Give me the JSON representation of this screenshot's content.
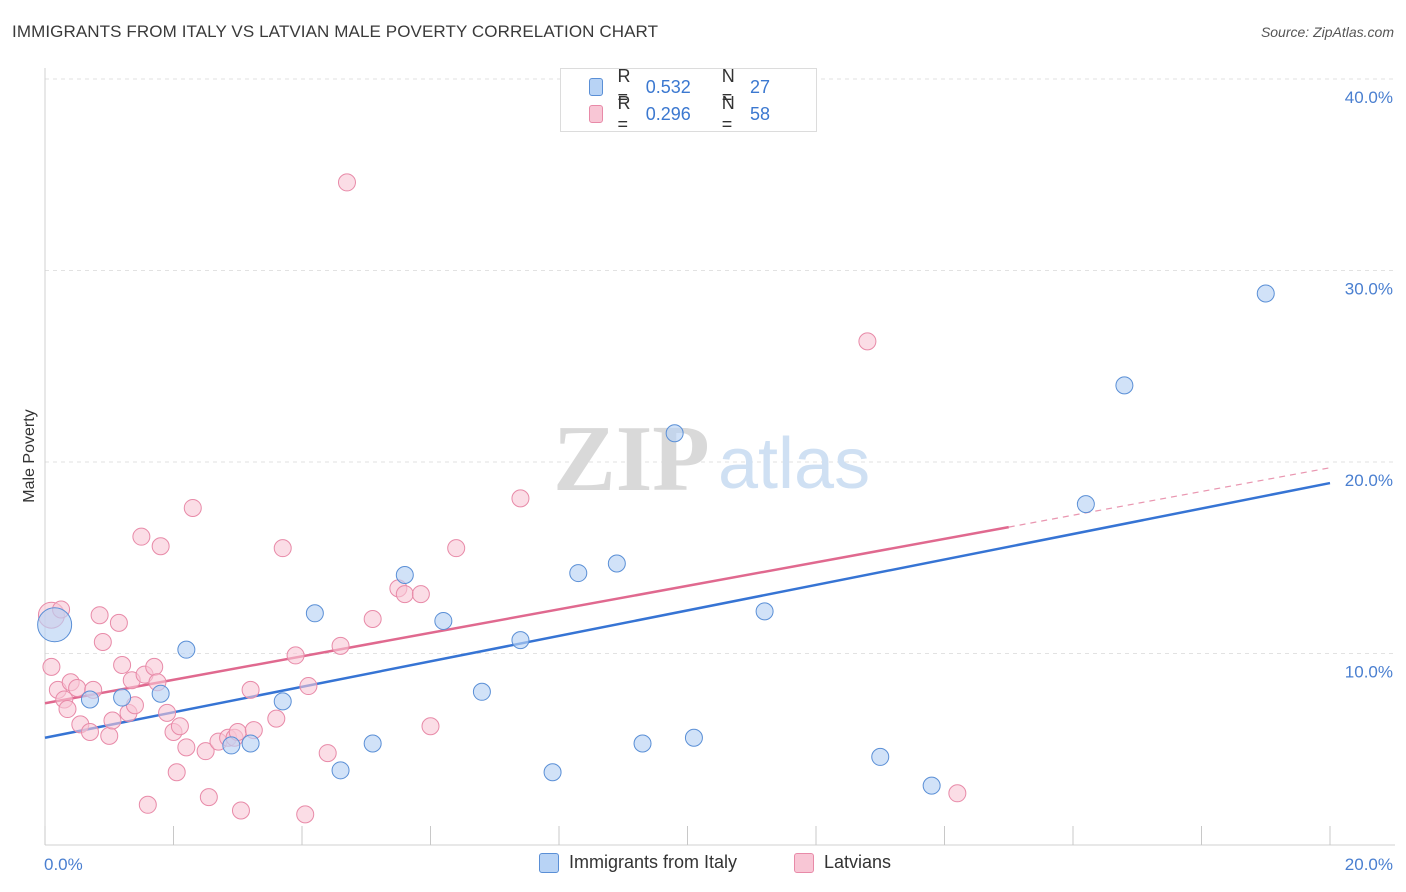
{
  "header": {
    "title": "IMMIGRANTS FROM ITALY VS LATVIAN MALE POVERTY CORRELATION CHART",
    "source": "Source: ZipAtlas.com"
  },
  "watermark": {
    "zip": "ZIP",
    "atlas": "atlas"
  },
  "legend": {
    "rows": [
      {
        "r_label": "R =",
        "r_value": "0.532",
        "n_label": "N =",
        "n_value": "27"
      },
      {
        "r_label": "R =",
        "r_value": "0.296",
        "n_label": "N =",
        "n_value": "58"
      }
    ]
  },
  "bottom_legend": {
    "italy": "Immigrants from Italy",
    "latvians": "Latvians"
  },
  "colors": {
    "italy_fill": "#b8d3f5",
    "italy_stroke": "#5a8fd6",
    "italy_line": "#3674d4",
    "latvian_fill": "#f8c6d5",
    "latvian_stroke": "#e88aa8",
    "latvian_line": "#e0698f",
    "tick_text": "#4a7fd0"
  },
  "chart_data": {
    "type": "scatter",
    "title": "IMMIGRANTS FROM ITALY VS LATVIAN MALE POVERTY CORRELATION CHART",
    "xlabel": "",
    "ylabel": "Male Poverty",
    "xlim": [
      0,
      20
    ],
    "ylim": [
      0,
      40
    ],
    "x_tick_labels": [
      "0.0%",
      "20.0%"
    ],
    "y_tick_labels": [
      "10.0%",
      "20.0%",
      "30.0%",
      "40.0%"
    ],
    "y_ticks": [
      10,
      20,
      30,
      40
    ],
    "grid": "horizontal dashed",
    "legend_position": "top-center",
    "series": [
      {
        "name": "Immigrants from Italy",
        "R": 0.532,
        "N": 27,
        "trend": {
          "x": [
            0,
            20
          ],
          "y": [
            5.6,
            18.9
          ]
        },
        "points": [
          {
            "x": 0.15,
            "y": 11.5,
            "big": true
          },
          {
            "x": 0.7,
            "y": 7.6
          },
          {
            "x": 1.2,
            "y": 7.7
          },
          {
            "x": 1.8,
            "y": 7.9
          },
          {
            "x": 2.2,
            "y": 10.2
          },
          {
            "x": 2.9,
            "y": 5.2
          },
          {
            "x": 3.2,
            "y": 5.3
          },
          {
            "x": 3.7,
            "y": 7.5
          },
          {
            "x": 4.2,
            "y": 12.1
          },
          {
            "x": 4.6,
            "y": 3.9
          },
          {
            "x": 5.1,
            "y": 5.3
          },
          {
            "x": 5.6,
            "y": 14.1
          },
          {
            "x": 6.2,
            "y": 11.7
          },
          {
            "x": 6.8,
            "y": 8.0
          },
          {
            "x": 7.4,
            "y": 10.7
          },
          {
            "x": 7.9,
            "y": 3.8
          },
          {
            "x": 8.3,
            "y": 14.2
          },
          {
            "x": 8.9,
            "y": 14.7
          },
          {
            "x": 9.3,
            "y": 5.3
          },
          {
            "x": 9.8,
            "y": 21.5
          },
          {
            "x": 10.1,
            "y": 5.6
          },
          {
            "x": 11.2,
            "y": 12.2
          },
          {
            "x": 13.0,
            "y": 4.6
          },
          {
            "x": 13.8,
            "y": 3.1
          },
          {
            "x": 16.2,
            "y": 17.8
          },
          {
            "x": 16.8,
            "y": 24.0
          },
          {
            "x": 19.0,
            "y": 28.8
          }
        ]
      },
      {
        "name": "Latvians",
        "R": 0.296,
        "N": 58,
        "trend": {
          "x": [
            0,
            15.0
          ],
          "y": [
            7.4,
            16.6
          ]
        },
        "trend_extension": {
          "x": [
            15.0,
            20
          ],
          "y": [
            16.6,
            19.7
          ]
        },
        "points": [
          {
            "x": 0.1,
            "y": 12.0,
            "big": true
          },
          {
            "x": 0.1,
            "y": 9.3
          },
          {
            "x": 0.2,
            "y": 8.1
          },
          {
            "x": 0.3,
            "y": 7.6
          },
          {
            "x": 0.35,
            "y": 7.1
          },
          {
            "x": 0.4,
            "y": 8.5
          },
          {
            "x": 0.5,
            "y": 8.2
          },
          {
            "x": 0.55,
            "y": 6.3
          },
          {
            "x": 0.7,
            "y": 5.9
          },
          {
            "x": 0.75,
            "y": 8.1
          },
          {
            "x": 0.85,
            "y": 12.0
          },
          {
            "x": 0.9,
            "y": 10.6
          },
          {
            "x": 1.0,
            "y": 5.7
          },
          {
            "x": 1.05,
            "y": 6.5
          },
          {
            "x": 1.15,
            "y": 11.6
          },
          {
            "x": 1.2,
            "y": 9.4
          },
          {
            "x": 1.3,
            "y": 6.9
          },
          {
            "x": 1.35,
            "y": 8.6
          },
          {
            "x": 1.4,
            "y": 7.3
          },
          {
            "x": 1.5,
            "y": 16.1
          },
          {
            "x": 1.55,
            "y": 8.9
          },
          {
            "x": 1.6,
            "y": 2.1
          },
          {
            "x": 1.7,
            "y": 9.3
          },
          {
            "x": 1.75,
            "y": 8.5
          },
          {
            "x": 1.8,
            "y": 15.6
          },
          {
            "x": 1.9,
            "y": 6.9
          },
          {
            "x": 2.0,
            "y": 5.9
          },
          {
            "x": 2.05,
            "y": 3.8
          },
          {
            "x": 2.1,
            "y": 6.2
          },
          {
            "x": 2.2,
            "y": 5.1
          },
          {
            "x": 2.3,
            "y": 17.6
          },
          {
            "x": 2.5,
            "y": 4.9
          },
          {
            "x": 2.55,
            "y": 2.5
          },
          {
            "x": 2.7,
            "y": 5.4
          },
          {
            "x": 2.85,
            "y": 5.6
          },
          {
            "x": 2.95,
            "y": 5.6
          },
          {
            "x": 3.0,
            "y": 5.9
          },
          {
            "x": 3.05,
            "y": 1.8
          },
          {
            "x": 3.2,
            "y": 8.1
          },
          {
            "x": 3.25,
            "y": 6.0
          },
          {
            "x": 3.6,
            "y": 6.6
          },
          {
            "x": 3.7,
            "y": 15.5
          },
          {
            "x": 3.9,
            "y": 9.9
          },
          {
            "x": 4.05,
            "y": 1.6
          },
          {
            "x": 4.1,
            "y": 8.3
          },
          {
            "x": 4.4,
            "y": 4.8
          },
          {
            "x": 4.6,
            "y": 10.4
          },
          {
            "x": 4.7,
            "y": 34.6
          },
          {
            "x": 5.1,
            "y": 11.8
          },
          {
            "x": 5.5,
            "y": 13.4
          },
          {
            "x": 5.6,
            "y": 13.1
          },
          {
            "x": 5.85,
            "y": 13.1
          },
          {
            "x": 6.0,
            "y": 6.2
          },
          {
            "x": 6.4,
            "y": 15.5
          },
          {
            "x": 7.4,
            "y": 18.1
          },
          {
            "x": 12.8,
            "y": 26.3
          },
          {
            "x": 14.2,
            "y": 2.7
          },
          {
            "x": 0.25,
            "y": 12.3
          }
        ]
      }
    ]
  }
}
